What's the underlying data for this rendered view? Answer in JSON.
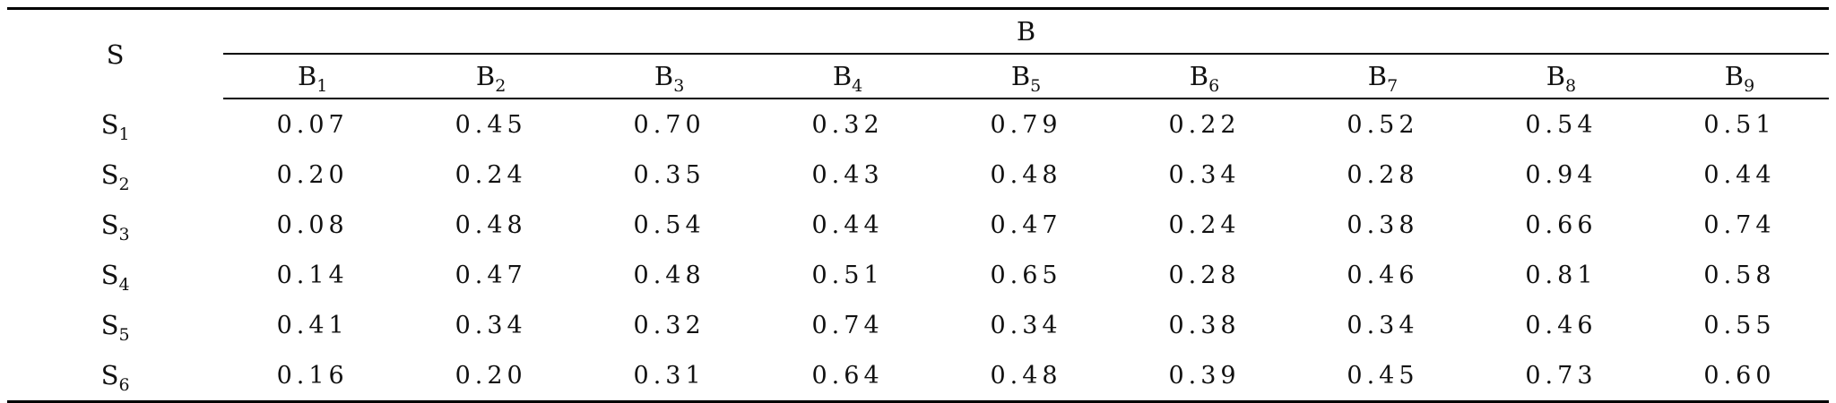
{
  "table": {
    "row_header": "S",
    "group_header": "B",
    "columns": [
      {
        "base": "B",
        "sub": "1"
      },
      {
        "base": "B",
        "sub": "2"
      },
      {
        "base": "B",
        "sub": "3"
      },
      {
        "base": "B",
        "sub": "4"
      },
      {
        "base": "B",
        "sub": "5"
      },
      {
        "base": "B",
        "sub": "6"
      },
      {
        "base": "B",
        "sub": "7"
      },
      {
        "base": "B",
        "sub": "8"
      },
      {
        "base": "B",
        "sub": "9"
      }
    ],
    "rows": [
      {
        "label": {
          "base": "S",
          "sub": "1"
        },
        "cells": [
          "0.07",
          "0.45",
          "0.70",
          "0.32",
          "0.79",
          "0.22",
          "0.52",
          "0.54",
          "0.51"
        ]
      },
      {
        "label": {
          "base": "S",
          "sub": "2"
        },
        "cells": [
          "0.20",
          "0.24",
          "0.35",
          "0.43",
          "0.48",
          "0.34",
          "0.28",
          "0.94",
          "0.44"
        ]
      },
      {
        "label": {
          "base": "S",
          "sub": "3"
        },
        "cells": [
          "0.08",
          "0.48",
          "0.54",
          "0.44",
          "0.47",
          "0.24",
          "0.38",
          "0.66",
          "0.74"
        ]
      },
      {
        "label": {
          "base": "S",
          "sub": "4"
        },
        "cells": [
          "0.14",
          "0.47",
          "0.48",
          "0.51",
          "0.65",
          "0.28",
          "0.46",
          "0.81",
          "0.58"
        ]
      },
      {
        "label": {
          "base": "S",
          "sub": "5"
        },
        "cells": [
          "0.41",
          "0.34",
          "0.32",
          "0.74",
          "0.34",
          "0.38",
          "0.34",
          "0.46",
          "0.55"
        ]
      },
      {
        "label": {
          "base": "S",
          "sub": "6"
        },
        "cells": [
          "0.16",
          "0.20",
          "0.31",
          "0.64",
          "0.48",
          "0.39",
          "0.45",
          "0.73",
          "0.60"
        ]
      }
    ]
  }
}
